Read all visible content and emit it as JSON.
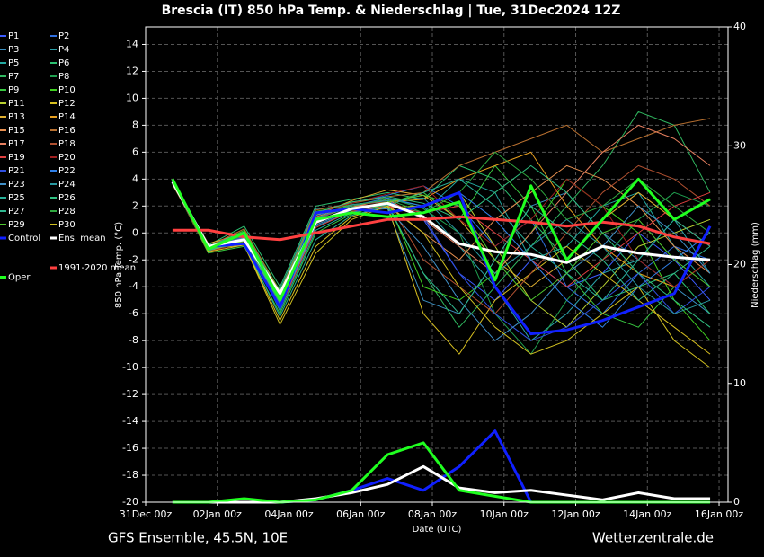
{
  "chart_data": {
    "type": "line",
    "title": "Brescia  (IT)  850 hPa Temp. & Niederschlag | Tue, 31Dec2024 12Z",
    "subtitle": "GFS Ensemble, 45.5N, 10E",
    "source": "Wetterzentrale.de",
    "x_label": "Date (UTC)",
    "y_label": "850 hPa Temp. (°C)",
    "y2_label": "Niederschlag (mm)",
    "x": [
      18,
      42,
      66,
      90,
      114,
      138,
      162,
      186,
      210,
      234,
      258,
      282,
      306,
      330,
      354,
      378
    ],
    "xlim": [
      0,
      390
    ],
    "xticks": [
      {
        "value": 0,
        "label": "31Dec 00z"
      },
      {
        "value": 48,
        "label": "02Jan 00z"
      },
      {
        "value": 96,
        "label": "04Jan 00z"
      },
      {
        "value": 144,
        "label": "06Jan 00z"
      },
      {
        "value": 192,
        "label": "08Jan 00z"
      },
      {
        "value": 240,
        "label": "10Jan 00z"
      },
      {
        "value": 288,
        "label": "12Jan 00z"
      },
      {
        "value": 336,
        "label": "14Jan 00z"
      },
      {
        "value": 384,
        "label": "16Jan 00z"
      }
    ],
    "ylim": [
      -20,
      15.3
    ],
    "yticks": [
      -20,
      -18,
      -16,
      -14,
      -12,
      -10,
      -8,
      -6,
      -4,
      -2,
      0,
      2,
      4,
      6,
      8,
      10,
      12,
      14
    ],
    "y2lim": [
      0,
      40
    ],
    "y2ticks": [
      0,
      10,
      20,
      30,
      40
    ],
    "grid": true,
    "legend": "left",
    "series": [
      {
        "name": "P1",
        "color": "#3b5bff",
        "values": [
          3.9,
          -1.1,
          -0.6,
          -5.2,
          1.0,
          2.0,
          2.4,
          1.0,
          -3,
          -5,
          -2,
          -4,
          -3,
          0,
          -2,
          -5
        ]
      },
      {
        "name": "P2",
        "color": "#2f6fe0",
        "values": [
          3.7,
          -1.3,
          -0.2,
          -4.8,
          1.5,
          2.2,
          2.8,
          3.5,
          2.0,
          -1,
          1,
          -4,
          -6,
          -3,
          -1,
          -2
        ]
      },
      {
        "name": "P3",
        "color": "#3a8fc0",
        "values": [
          3.8,
          -1.0,
          -0.4,
          -5.5,
          0.5,
          1.6,
          1.8,
          -5,
          -6,
          -2,
          2,
          3,
          0,
          -2,
          -4,
          -6
        ]
      },
      {
        "name": "P4",
        "color": "#2aa0a8",
        "values": [
          3.9,
          -1.2,
          -0.8,
          -4.2,
          1.8,
          2.0,
          2.5,
          2.0,
          -1,
          -4,
          -8,
          -6,
          -3,
          -2,
          1,
          -3
        ]
      },
      {
        "name": "P5",
        "color": "#23a8a0",
        "values": [
          3.8,
          -1.4,
          -0.3,
          -5.8,
          0.2,
          1.5,
          2.1,
          1.5,
          4,
          3,
          -2,
          -1,
          2,
          3,
          -1,
          -4
        ]
      },
      {
        "name": "P6",
        "color": "#2cc070",
        "values": [
          4.0,
          -0.9,
          0.5,
          -4.0,
          2.0,
          2.5,
          3.0,
          2.5,
          5,
          4,
          1,
          -2,
          -5,
          -4,
          -3,
          -6
        ]
      },
      {
        "name": "P7",
        "color": "#30b860",
        "values": [
          3.8,
          -1.2,
          -0.7,
          -5.0,
          1.1,
          1.9,
          2.0,
          -3,
          -7,
          -4,
          -1,
          2,
          5,
          9,
          8,
          3
        ]
      },
      {
        "name": "P8",
        "color": "#20a050",
        "values": [
          3.9,
          -1.0,
          -0.1,
          -4.5,
          1.4,
          2.3,
          2.6,
          1.8,
          0,
          -6,
          -9,
          -5,
          -2,
          1,
          3,
          2
        ]
      },
      {
        "name": "P9",
        "color": "#38c840",
        "values": [
          3.7,
          -1.5,
          -1.0,
          -6.0,
          0.0,
          1.4,
          2.2,
          3,
          1,
          5,
          2,
          -3,
          -6,
          -7,
          -4,
          -2
        ]
      },
      {
        "name": "P10",
        "color": "#40d020",
        "values": [
          3.8,
          -1.1,
          0.2,
          -4.3,
          1.6,
          2.1,
          2.4,
          -4,
          -5,
          -3,
          0,
          4,
          2,
          0,
          -5,
          -8
        ]
      },
      {
        "name": "P11",
        "color": "#b8d030",
        "values": [
          3.9,
          -1.3,
          -0.5,
          -5.4,
          0.8,
          1.8,
          1.9,
          2,
          3,
          -1,
          -5,
          -7,
          -4,
          -1,
          0,
          1
        ]
      },
      {
        "name": "P12",
        "color": "#d8c020",
        "values": [
          3.6,
          -1.2,
          -0.9,
          -6.5,
          -1.0,
          1.2,
          2.0,
          -6,
          -9,
          -5,
          -3,
          -1,
          -3,
          -5,
          -7,
          -9
        ]
      },
      {
        "name": "P13",
        "color": "#e0b030",
        "values": [
          3.8,
          -0.8,
          0.0,
          -4.7,
          1.3,
          2.4,
          3.2,
          2.8,
          1,
          -2,
          -4,
          -2,
          1,
          3,
          1,
          -1
        ]
      },
      {
        "name": "P14",
        "color": "#e8a020",
        "values": [
          3.9,
          -1.4,
          -0.6,
          -5.1,
          0.9,
          1.7,
          2.3,
          2.5,
          4,
          5,
          6,
          2,
          -1,
          -3,
          -4,
          -2
        ]
      },
      {
        "name": "P15",
        "color": "#e89050",
        "values": [
          3.8,
          -1.1,
          -0.3,
          -4.9,
          1.2,
          2.0,
          2.1,
          0,
          -2,
          1,
          3,
          5,
          4,
          2,
          -1,
          -3
        ]
      },
      {
        "name": "P16",
        "color": "#b87030",
        "values": [
          3.7,
          -1.0,
          0.3,
          -4.4,
          1.7,
          2.2,
          2.7,
          3,
          5,
          6,
          7,
          8,
          6,
          7,
          8,
          8.5
        ]
      },
      {
        "name": "P17",
        "color": "#e88060",
        "values": [
          3.8,
          -1.3,
          -0.4,
          -5.3,
          0.7,
          1.9,
          2.5,
          1,
          -1,
          -3,
          0,
          3,
          6,
          8,
          7,
          5
        ]
      },
      {
        "name": "P18",
        "color": "#b05030",
        "values": [
          3.9,
          -1.2,
          -0.2,
          -5.0,
          1.0,
          2.1,
          2.3,
          -2,
          -4,
          -6,
          -3,
          0,
          3,
          5,
          4,
          2
        ]
      },
      {
        "name": "P19",
        "color": "#e04040",
        "values": [
          3.8,
          -1.1,
          -0.5,
          -5.6,
          0.4,
          1.6,
          2.0,
          1.5,
          2,
          0,
          -2,
          -4,
          -2,
          0,
          2,
          3
        ]
      },
      {
        "name": "P20",
        "color": "#a02020",
        "values": [
          3.7,
          -1.4,
          -0.7,
          -4.6,
          1.5,
          2.2,
          2.9,
          3.5,
          1,
          -1,
          1,
          4,
          2,
          -2,
          -4,
          -2
        ]
      },
      {
        "name": "P21",
        "color": "#3050e0",
        "values": [
          3.8,
          -1.0,
          -0.3,
          -5.2,
          0.9,
          1.8,
          2.2,
          1.2,
          -3,
          -6,
          -8,
          -7,
          -5,
          -3,
          -6,
          -4
        ]
      },
      {
        "name": "P22",
        "color": "#3080e8",
        "values": [
          3.9,
          -1.2,
          -0.6,
          -4.8,
          1.3,
          2.0,
          2.6,
          2.0,
          3,
          1,
          -2,
          -5,
          -7,
          -4,
          -2,
          0
        ]
      },
      {
        "name": "P23",
        "color": "#4090c8",
        "values": [
          3.8,
          -1.3,
          -0.1,
          -5.4,
          0.6,
          1.7,
          1.8,
          -1,
          -5,
          -8,
          -6,
          -3,
          -1,
          2,
          0,
          -3
        ]
      },
      {
        "name": "P24",
        "color": "#2898a0",
        "values": [
          3.7,
          -1.1,
          -0.4,
          -5.0,
          1.1,
          2.1,
          2.4,
          2.6,
          0,
          -3,
          -1,
          1,
          -1,
          -4,
          -6,
          -5
        ]
      },
      {
        "name": "P25",
        "color": "#28b098",
        "values": [
          3.8,
          -1.2,
          -0.8,
          -6.2,
          -0.5,
          1.3,
          2.0,
          3,
          4,
          2,
          -1,
          -3,
          -5,
          -2,
          1,
          -1
        ]
      },
      {
        "name": "P26",
        "color": "#30c080",
        "values": [
          3.9,
          -1.0,
          0.1,
          -4.5,
          1.5,
          2.3,
          2.7,
          2.2,
          1,
          3,
          5,
          3,
          0,
          -3,
          -5,
          -7
        ]
      },
      {
        "name": "P27",
        "color": "#30b890",
        "values": [
          3.8,
          -1.3,
          -0.5,
          -5.1,
          0.8,
          1.9,
          2.1,
          -3,
          -6,
          -2,
          2,
          0,
          -2,
          -5,
          -3,
          -1
        ]
      },
      {
        "name": "P28",
        "color": "#30a840",
        "values": [
          3.7,
          -1.1,
          -0.2,
          -4.7,
          1.4,
          2.0,
          2.5,
          1.5,
          3,
          6,
          4,
          1,
          2,
          4,
          2,
          0
        ]
      },
      {
        "name": "P29",
        "color": "#50c830",
        "values": [
          3.8,
          -1.2,
          -0.6,
          -5.3,
          0.9,
          1.8,
          2.3,
          2.8,
          2,
          -2,
          -5,
          -3,
          0,
          1,
          -2,
          -4
        ]
      },
      {
        "name": "P30",
        "color": "#d0c020",
        "values": [
          3.9,
          -1.4,
          -0.9,
          -6.8,
          -1.5,
          1.0,
          2.0,
          0,
          -4,
          -7,
          -9,
          -8,
          -6,
          -4,
          -8,
          -10
        ]
      },
      {
        "name": "Control",
        "color": "#1020ff",
        "width": 3,
        "values": [
          3.8,
          -1.0,
          -0.8,
          -5.5,
          1.5,
          1.8,
          1.5,
          2.0,
          3.0,
          -4,
          -7.5,
          -7.2,
          -6.5,
          -5.5,
          -4.5,
          0.5
        ],
        "precip": [
          0,
          0,
          0,
          0,
          0.2,
          1,
          2,
          1,
          3,
          6,
          0,
          0,
          0,
          0,
          0,
          0
        ]
      },
      {
        "name": "Ens. mean",
        "color": "#ffffff",
        "width": 3,
        "values": [
          3.8,
          -1.0,
          -0.5,
          -4.5,
          0.8,
          1.8,
          2.2,
          1.2,
          -0.8,
          -1.4,
          -1.6,
          -2.2,
          -1.0,
          -1.5,
          -1.8,
          -2.0
        ],
        "precip": [
          0,
          0,
          0,
          0,
          0.3,
          0.8,
          1.5,
          3.0,
          1.2,
          0.8,
          1.0,
          0.6,
          0.2,
          0.8,
          0.3,
          0.3
        ]
      },
      {
        "name": "1991-2020 mean",
        "color": "#ff4040",
        "width": 3,
        "values": [
          0.2,
          0.2,
          -0.3,
          -0.5,
          0.0,
          0.5,
          1.0,
          1.0,
          1.2,
          1.0,
          0.8,
          0.5,
          0.8,
          0.5,
          -0.3,
          -0.8
        ]
      },
      {
        "name": "Oper",
        "color": "#20ff20",
        "width": 3,
        "values": [
          4.0,
          -1.2,
          0.0,
          -5.0,
          1.0,
          1.5,
          1.2,
          1.5,
          2.3,
          -3.5,
          3.5,
          -2,
          1.0,
          4.0,
          1.0,
          2.5
        ],
        "precip": [
          0,
          0,
          0.3,
          0,
          0.2,
          1,
          4,
          5,
          1,
          0.5,
          0,
          0,
          0,
          0,
          0,
          0
        ]
      }
    ]
  }
}
